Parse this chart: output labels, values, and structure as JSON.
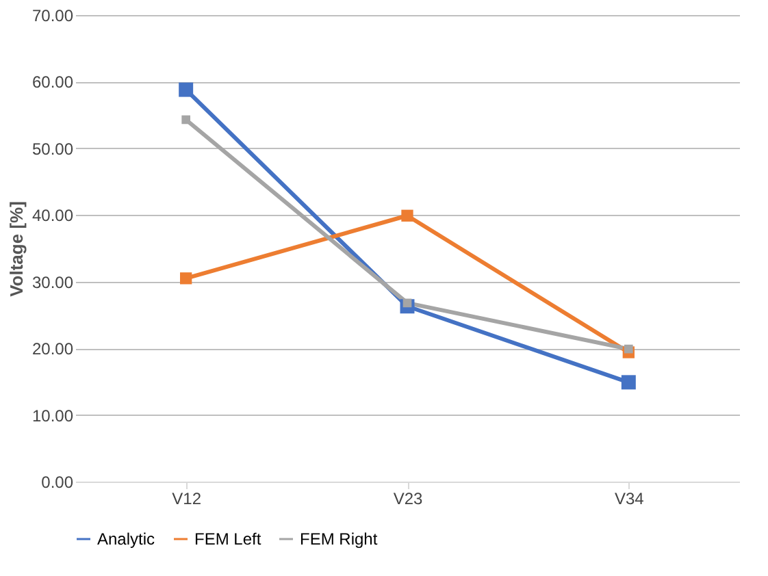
{
  "chart_data": {
    "type": "line",
    "ylabel": "Voltage [%]",
    "categories": [
      "V12",
      "V23",
      "V34"
    ],
    "series": [
      {
        "name": "Analytic",
        "color": "#4472c4",
        "values": [
          58.8,
          26.3,
          14.9
        ]
      },
      {
        "name": "FEM Left",
        "color": "#ed7d31",
        "values": [
          30.5,
          39.9,
          19.4
        ]
      },
      {
        "name": "FEM Right",
        "color": "#a5a5a5",
        "values": [
          54.3,
          26.8,
          19.9
        ]
      }
    ],
    "ylim": [
      0,
      70
    ],
    "yticks": [
      {
        "value": 0,
        "label": "0.00"
      },
      {
        "value": 10,
        "label": "10.00"
      },
      {
        "value": 20,
        "label": "20.00"
      },
      {
        "value": 30,
        "label": "30.00"
      },
      {
        "value": 40,
        "label": "40.00"
      },
      {
        "value": 50,
        "label": "50.00"
      },
      {
        "value": 60,
        "label": "60.00"
      },
      {
        "value": 70,
        "label": "70.00"
      }
    ],
    "grid": "y",
    "legend": "bottom",
    "marker": "square",
    "line_style": "solid"
  }
}
